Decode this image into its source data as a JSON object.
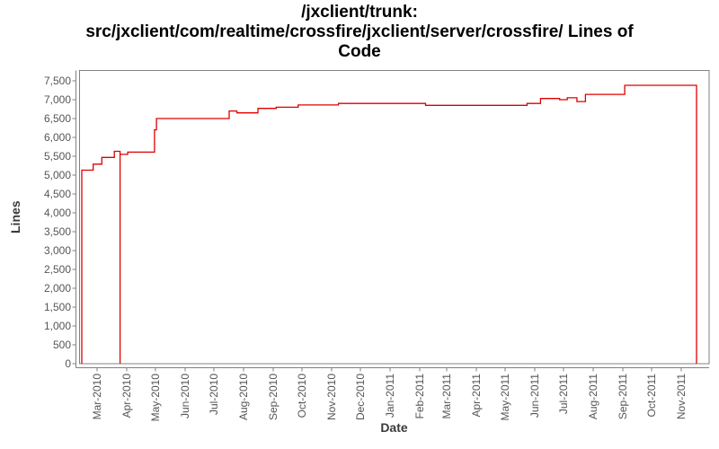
{
  "title": {
    "lines": [
      "/jxclient/trunk:",
      "src/jxclient/com/realtime/crossfire/jxclient/server/crossfire/ Lines of",
      "Code"
    ]
  },
  "chart_data": {
    "type": "line",
    "subtype": "step-after",
    "title": "/jxclient/trunk: src/jxclient/com/realtime/crossfire/jxclient/server/crossfire/ Lines of Code",
    "xlabel": "Date",
    "ylabel": "Lines",
    "line_color": "#dd0000",
    "axis_color": "#808080",
    "tick_label_color": "#555555",
    "grid": false,
    "legend": "none",
    "ylim": [
      0,
      7500
    ],
    "yticks": [
      0,
      500,
      1000,
      1500,
      2000,
      2500,
      3000,
      3500,
      4000,
      4500,
      5000,
      5500,
      6000,
      6500,
      7000,
      7500
    ],
    "xticks": [
      "Mar-2010",
      "Apr-2010",
      "May-2010",
      "Jun-2010",
      "Jul-2010",
      "Aug-2010",
      "Sep-2010",
      "Oct-2010",
      "Nov-2010",
      "Dec-2010",
      "Jan-2011",
      "Feb-2011",
      "Mar-2011",
      "Apr-2011",
      "May-2011",
      "Jun-2011",
      "Jul-2011",
      "Aug-2011",
      "Sep-2011",
      "Oct-2011",
      "Nov-2011"
    ],
    "x_range": [
      "2010-02-10",
      "2011-11-30"
    ],
    "points": [
      {
        "date": "2010-02-13",
        "lines": 5130
      },
      {
        "date": "2010-02-25",
        "lines": 5290
      },
      {
        "date": "2010-03-06",
        "lines": 5470
      },
      {
        "date": "2010-03-19",
        "lines": 5630
      },
      {
        "date": "2010-03-25",
        "lines": 0
      },
      {
        "date": "2010-03-25",
        "lines": 5550
      },
      {
        "date": "2010-04-02",
        "lines": 5610
      },
      {
        "date": "2010-04-30",
        "lines": 6200
      },
      {
        "date": "2010-05-02",
        "lines": 6500
      },
      {
        "date": "2010-07-17",
        "lines": 6700
      },
      {
        "date": "2010-07-25",
        "lines": 6650
      },
      {
        "date": "2010-08-16",
        "lines": 6770
      },
      {
        "date": "2010-09-04",
        "lines": 6800
      },
      {
        "date": "2010-09-27",
        "lines": 6860
      },
      {
        "date": "2010-11-08",
        "lines": 6900
      },
      {
        "date": "2011-02-07",
        "lines": 6850
      },
      {
        "date": "2011-05-24",
        "lines": 6900
      },
      {
        "date": "2011-06-07",
        "lines": 7030
      },
      {
        "date": "2011-06-27",
        "lines": 7000
      },
      {
        "date": "2011-07-05",
        "lines": 7050
      },
      {
        "date": "2011-07-15",
        "lines": 6950
      },
      {
        "date": "2011-07-24",
        "lines": 7140
      },
      {
        "date": "2011-09-03",
        "lines": 7380
      },
      {
        "date": "2011-11-17",
        "lines": 0
      }
    ]
  }
}
